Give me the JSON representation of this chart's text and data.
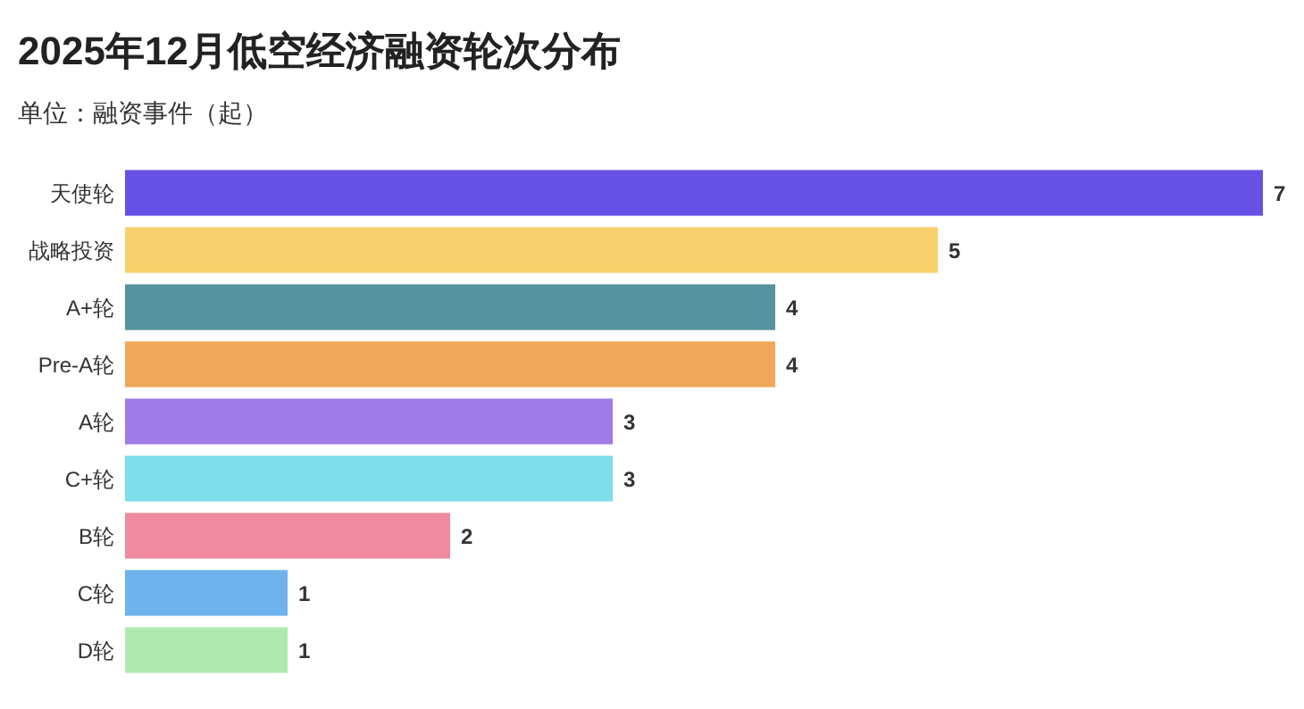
{
  "chart_data": {
    "type": "bar",
    "orientation": "horizontal",
    "title": "2025年12月低空经济融资轮次分布",
    "subtitle": "单位：融资事件（起）",
    "categories": [
      "天使轮",
      "战略投资",
      "A+轮",
      "Pre-A轮",
      "A轮",
      "C+轮",
      "B轮",
      "C轮",
      "D轮"
    ],
    "values": [
      7,
      5,
      4,
      4,
      3,
      3,
      2,
      1,
      1
    ],
    "colors": [
      "#6650e6",
      "#f7d06b",
      "#56939e",
      "#f2a65a",
      "#a07ae6",
      "#7ddde8",
      "#f08aa0",
      "#6fb3ee",
      "#aeeab0"
    ],
    "data_labels": true
  }
}
